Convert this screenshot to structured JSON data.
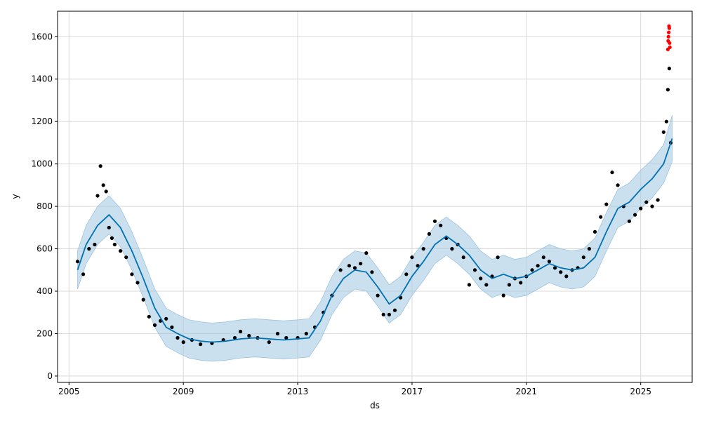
{
  "chart_data": {
    "type": "line",
    "title": "",
    "xlabel": "ds",
    "ylabel": "y",
    "x_ticks": [
      "2005",
      "2009",
      "2013",
      "2017",
      "2021",
      "2025"
    ],
    "y_ticks": [
      0,
      200,
      400,
      600,
      800,
      1000,
      1200,
      1400,
      1600
    ],
    "xlim": [
      2004.6,
      2026.8
    ],
    "ylim": [
      -30,
      1720
    ],
    "grid": true,
    "colors": {
      "forecast_line": "#0072B2",
      "uncertainty_band": "#a6cbe3",
      "observed_points": "#000000",
      "highlighted_points": "#ff0000"
    },
    "forecast": {
      "x": [
        2005.3,
        2005.6,
        2006.0,
        2006.4,
        2006.8,
        2007.2,
        2007.6,
        2008.0,
        2008.4,
        2008.8,
        2009.2,
        2009.6,
        2010.0,
        2010.5,
        2011.0,
        2011.5,
        2012.0,
        2012.5,
        2013.0,
        2013.4,
        2013.8,
        2014.2,
        2014.6,
        2015.0,
        2015.4,
        2015.8,
        2016.2,
        2016.6,
        2017.0,
        2017.4,
        2017.8,
        2018.2,
        2018.6,
        2019.0,
        2019.4,
        2019.8,
        2020.2,
        2020.6,
        2021.0,
        2021.4,
        2021.8,
        2022.2,
        2022.6,
        2023.0,
        2023.4,
        2023.8,
        2024.2,
        2024.6,
        2025.0,
        2025.4,
        2025.8,
        2026.1
      ],
      "yhat": [
        500,
        620,
        710,
        760,
        700,
        590,
        460,
        320,
        230,
        200,
        175,
        165,
        160,
        165,
        175,
        180,
        175,
        170,
        175,
        180,
        260,
        380,
        460,
        500,
        490,
        420,
        340,
        380,
        470,
        540,
        620,
        660,
        620,
        570,
        500,
        460,
        480,
        460,
        470,
        500,
        530,
        510,
        500,
        510,
        560,
        680,
        790,
        820,
        880,
        930,
        1000,
        1120
      ],
      "lower": [
        410,
        530,
        620,
        670,
        610,
        500,
        370,
        230,
        140,
        110,
        85,
        75,
        70,
        75,
        85,
        90,
        85,
        80,
        85,
        90,
        170,
        290,
        370,
        410,
        400,
        330,
        250,
        290,
        380,
        450,
        530,
        570,
        530,
        480,
        410,
        370,
        390,
        370,
        380,
        410,
        440,
        420,
        410,
        420,
        470,
        590,
        700,
        730,
        790,
        840,
        910,
        1010
      ],
      "upper": [
        590,
        710,
        800,
        850,
        790,
        680,
        550,
        410,
        320,
        290,
        265,
        255,
        250,
        255,
        265,
        270,
        265,
        260,
        265,
        270,
        350,
        470,
        550,
        590,
        580,
        510,
        430,
        470,
        560,
        630,
        710,
        750,
        710,
        660,
        590,
        550,
        570,
        550,
        560,
        590,
        620,
        600,
        590,
        600,
        650,
        770,
        880,
        910,
        970,
        1020,
        1090,
        1230
      ]
    },
    "observed": {
      "x": [
        2005.3,
        2005.5,
        2005.7,
        2005.9,
        2006.0,
        2006.1,
        2006.2,
        2006.3,
        2006.4,
        2006.5,
        2006.6,
        2006.8,
        2007.0,
        2007.2,
        2007.4,
        2007.6,
        2007.8,
        2008.0,
        2008.2,
        2008.4,
        2008.6,
        2008.8,
        2009.0,
        2009.3,
        2009.6,
        2010.0,
        2010.4,
        2010.8,
        2011.0,
        2011.3,
        2011.6,
        2012.0,
        2012.3,
        2012.6,
        2013.0,
        2013.3,
        2013.6,
        2013.9,
        2014.2,
        2014.5,
        2014.8,
        2015.0,
        2015.2,
        2015.4,
        2015.6,
        2015.8,
        2016.0,
        2016.2,
        2016.4,
        2016.6,
        2016.8,
        2017.0,
        2017.2,
        2017.4,
        2017.6,
        2017.8,
        2018.0,
        2018.2,
        2018.4,
        2018.6,
        2018.8,
        2019.0,
        2019.2,
        2019.4,
        2019.6,
        2019.8,
        2020.0,
        2020.2,
        2020.4,
        2020.6,
        2020.8,
        2021.0,
        2021.2,
        2021.4,
        2021.6,
        2021.8,
        2022.0,
        2022.2,
        2022.4,
        2022.6,
        2022.8,
        2023.0,
        2023.2,
        2023.4,
        2023.6,
        2023.8,
        2024.0,
        2024.2,
        2024.4,
        2024.6,
        2024.8,
        2025.0,
        2025.2,
        2025.4,
        2025.6,
        2025.8,
        2025.9,
        2025.95,
        2026.0,
        2026.05
      ],
      "y": [
        540,
        480,
        600,
        620,
        850,
        990,
        900,
        870,
        700,
        650,
        620,
        590,
        560,
        480,
        440,
        360,
        280,
        240,
        260,
        270,
        230,
        180,
        160,
        170,
        150,
        155,
        170,
        180,
        210,
        190,
        180,
        160,
        200,
        180,
        180,
        200,
        230,
        300,
        380,
        500,
        520,
        510,
        530,
        580,
        490,
        380,
        290,
        290,
        310,
        370,
        480,
        560,
        520,
        600,
        670,
        730,
        710,
        650,
        600,
        620,
        560,
        430,
        500,
        460,
        430,
        470,
        560,
        380,
        430,
        460,
        440,
        470,
        500,
        520,
        560,
        540,
        510,
        490,
        470,
        500,
        510,
        560,
        600,
        680,
        750,
        810,
        960,
        900,
        800,
        730,
        760,
        790,
        820,
        800,
        830,
        1150,
        1200,
        1350,
        1450,
        1100
      ]
    },
    "highlighted": {
      "x": [
        2025.95,
        2025.96,
        2025.97,
        2025.98,
        2025.99,
        2026.0,
        2026.01,
        2026.02
      ],
      "y": [
        1540,
        1580,
        1600,
        1620,
        1650,
        1640,
        1570,
        1550
      ]
    }
  }
}
